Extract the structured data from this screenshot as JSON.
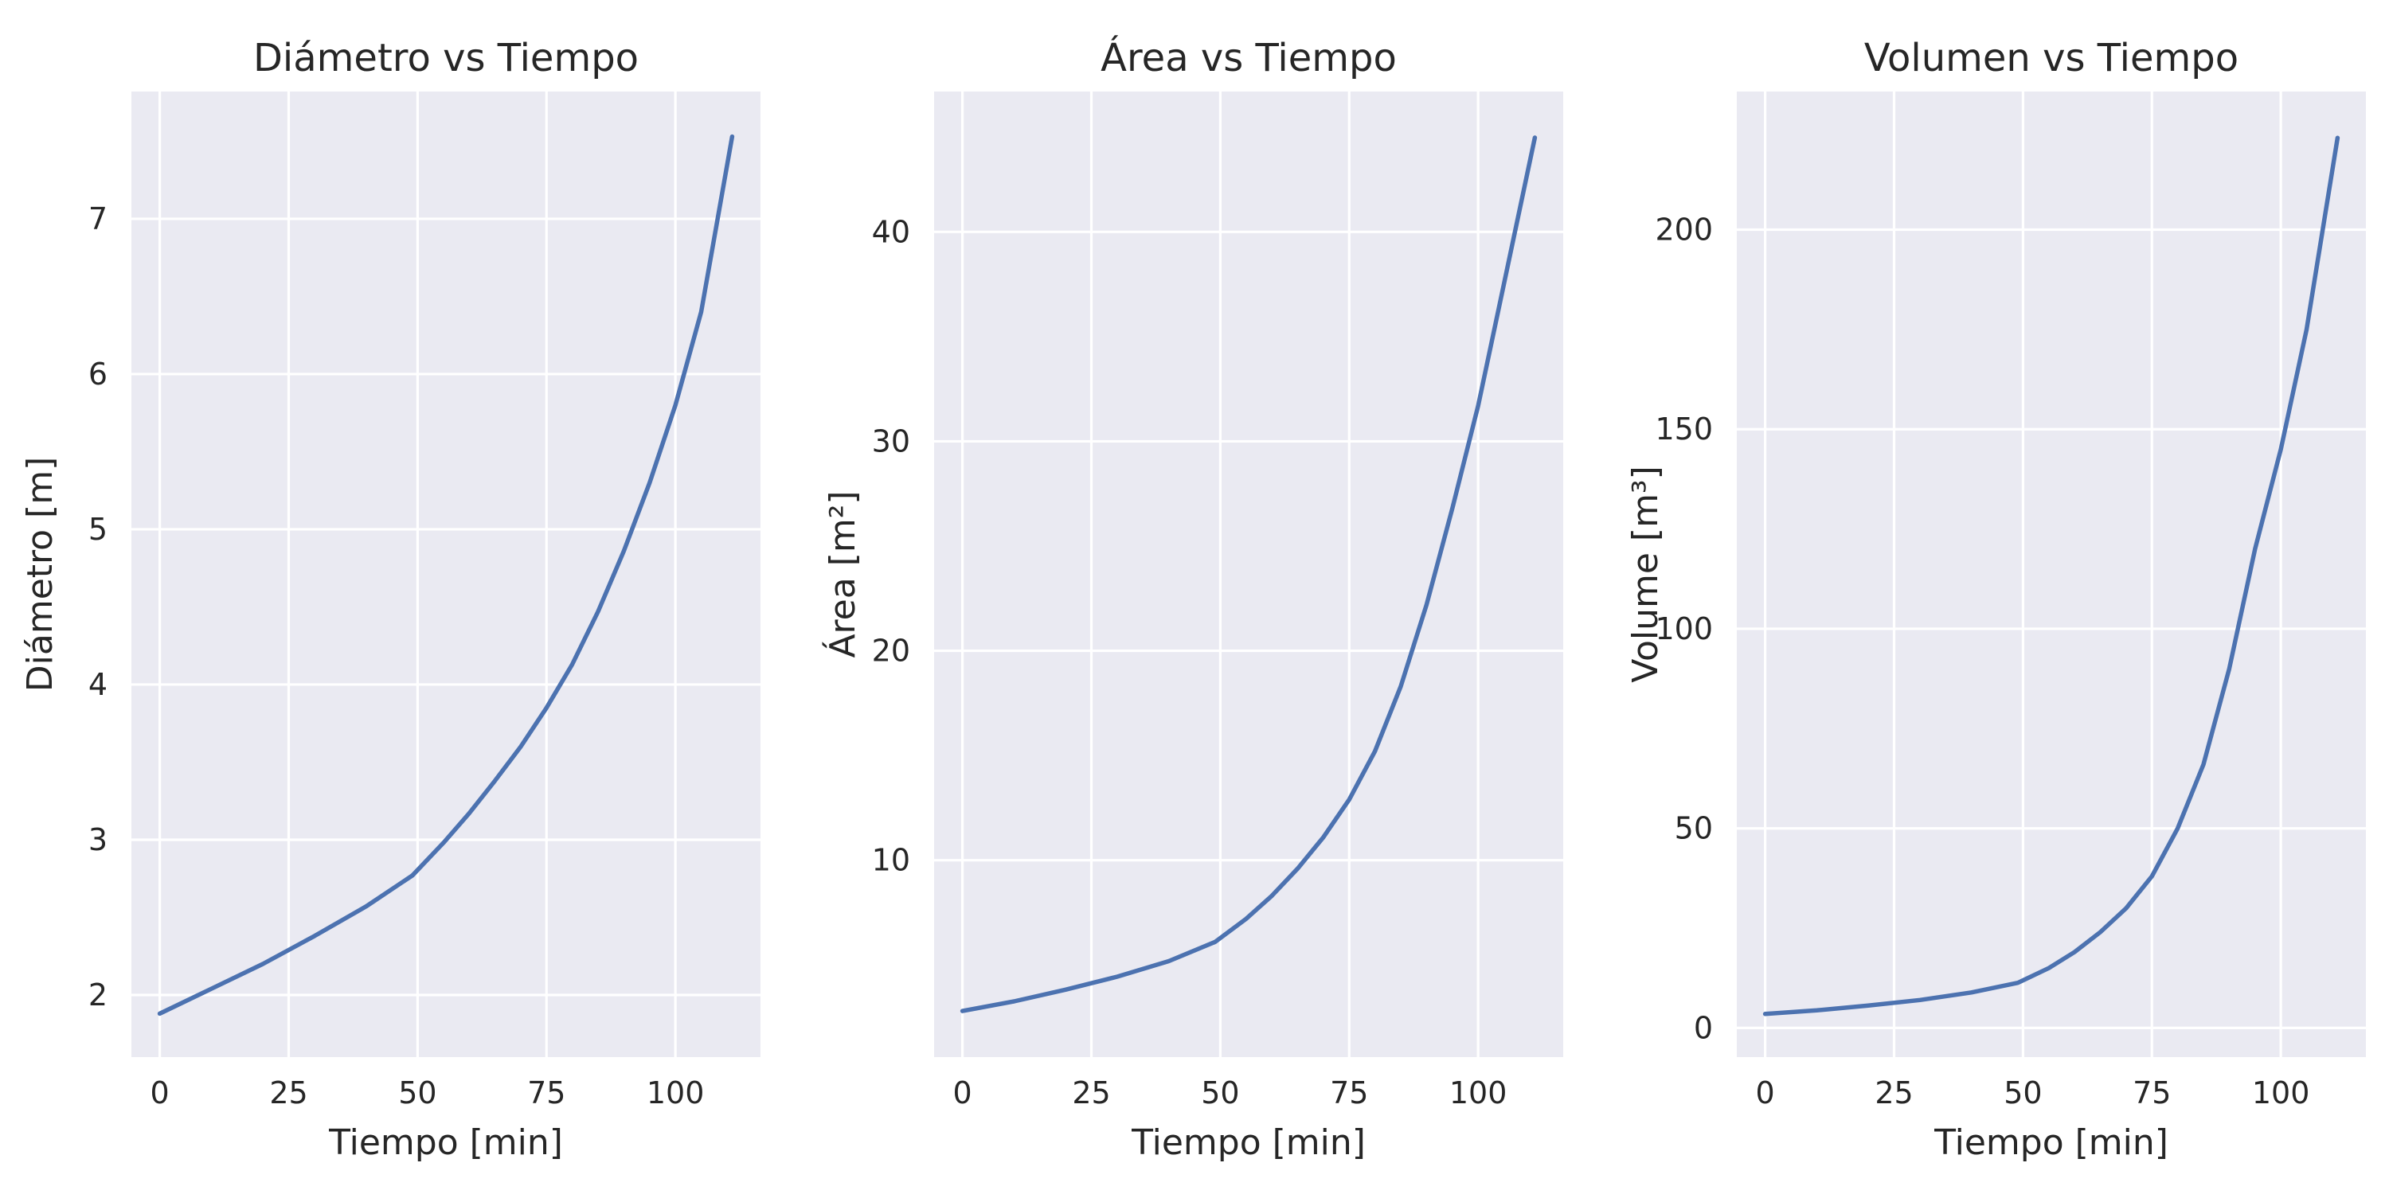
{
  "colors": {
    "line": "#4c72b0",
    "background": "#eaeaf2",
    "grid": "#ffffff",
    "text": "#262626"
  },
  "chart_data": [
    {
      "type": "line",
      "title": "Diámetro vs Tiempo",
      "xlabel": "Tiempo [min]",
      "ylabel": "Diámetro [m]",
      "xlim": [
        -5.5,
        116.5
      ],
      "ylim": [
        1.6,
        7.82
      ],
      "xticks": [
        0,
        25,
        50,
        75,
        100
      ],
      "yticks": [
        2,
        3,
        4,
        5,
        6,
        7
      ],
      "grid": true,
      "series": [
        {
          "x": [
            0,
            10,
            20,
            30,
            40,
            49,
            55,
            60,
            65,
            70,
            75,
            80,
            85,
            90,
            95,
            100,
            105,
            111
          ],
          "y": [
            1.88,
            2.04,
            2.2,
            2.38,
            2.57,
            2.77,
            2.98,
            3.17,
            3.38,
            3.6,
            3.85,
            4.13,
            4.47,
            4.86,
            5.3,
            5.8,
            6.4,
            7.53
          ]
        }
      ]
    },
    {
      "type": "line",
      "title": "Área vs Tiempo",
      "xlabel": "Tiempo [min]",
      "ylabel": "Área [m²]",
      "xlim": [
        -5.5,
        116.5
      ],
      "ylim": [
        0.6,
        46.7
      ],
      "xticks": [
        0,
        25,
        50,
        75,
        100
      ],
      "yticks": [
        10,
        20,
        30,
        40
      ],
      "grid": true,
      "series": [
        {
          "x": [
            0,
            10,
            20,
            30,
            40,
            49,
            55,
            60,
            65,
            70,
            75,
            80,
            85,
            90,
            95,
            100,
            105,
            111
          ],
          "y": [
            2.8,
            3.26,
            3.82,
            4.44,
            5.18,
            6.1,
            7.2,
            8.3,
            9.6,
            11.1,
            12.9,
            15.2,
            18.3,
            22.2,
            26.8,
            31.7,
            37.5,
            44.5
          ]
        }
      ]
    },
    {
      "type": "line",
      "title": "Volumen vs Tiempo",
      "xlabel": "Tiempo [min]",
      "ylabel": "Volume [m³]",
      "xlim": [
        -5.5,
        116.5
      ],
      "ylim": [
        -7.3,
        234.6
      ],
      "xticks": [
        0,
        25,
        50,
        75,
        100
      ],
      "yticks": [
        0,
        50,
        100,
        150,
        200
      ],
      "grid": true,
      "series": [
        {
          "x": [
            0,
            10,
            20,
            30,
            40,
            49,
            55,
            60,
            65,
            70,
            75,
            80,
            85,
            90,
            95,
            100,
            105,
            111
          ],
          "y": [
            3.5,
            4.4,
            5.6,
            7.0,
            8.9,
            11.3,
            15.0,
            19.0,
            24.0,
            30.0,
            38.0,
            50.0,
            66.0,
            90.0,
            120.0,
            145.0,
            175.0,
            223.0
          ]
        }
      ]
    }
  ]
}
